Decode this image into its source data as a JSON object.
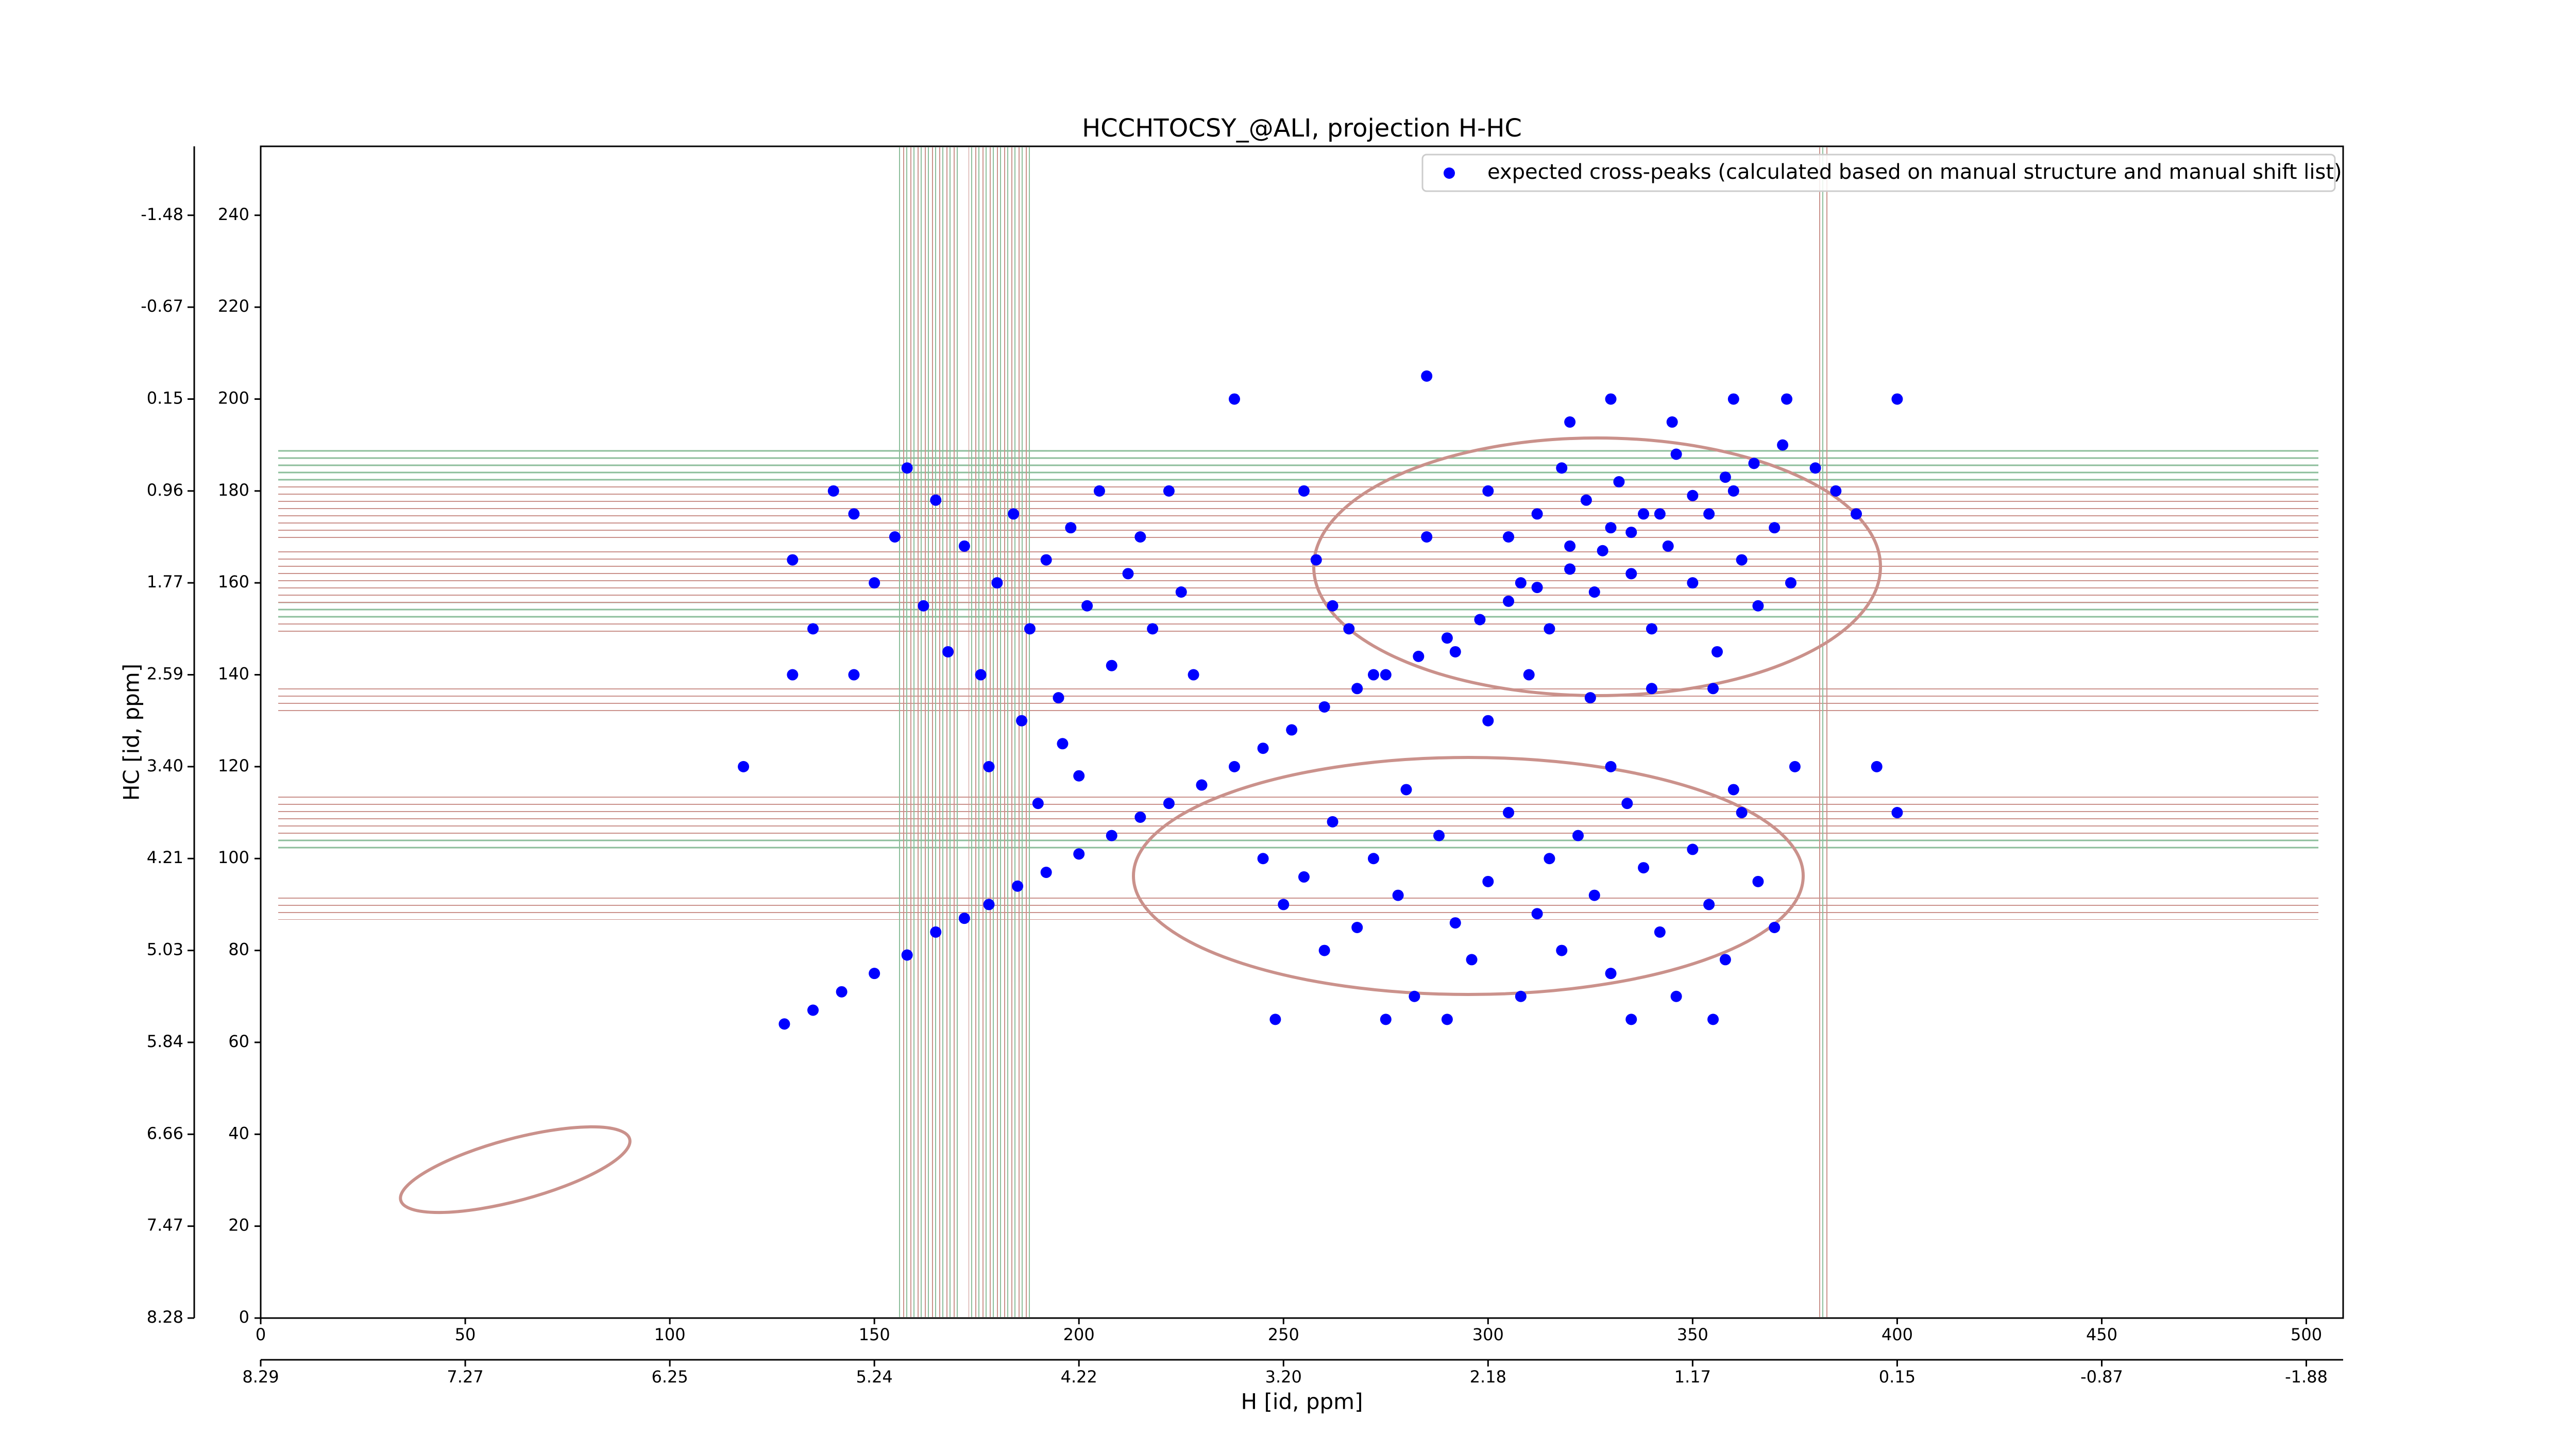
{
  "chart_data": {
    "type": "scatter",
    "title": "HCCHTOCSY_@ALI, projection H-HC",
    "xlabel": "H [id, ppm]",
    "ylabel": "HC [id, ppm]",
    "xlim": [
      0,
      509
    ],
    "ylim": [
      0,
      255
    ],
    "xticks": [
      0,
      50,
      100,
      150,
      200,
      250,
      300,
      350,
      400,
      450,
      500
    ],
    "yticks": [
      0,
      20,
      40,
      60,
      80,
      100,
      120,
      140,
      160,
      180,
      200,
      220,
      240
    ],
    "x2lim": [
      0,
      509
    ],
    "x2ticks": [
      {
        "value": 0,
        "label": "8.29"
      },
      {
        "value": 50,
        "label": "7.27"
      },
      {
        "value": 100,
        "label": "6.25"
      },
      {
        "value": 150,
        "label": "5.24"
      },
      {
        "value": 200,
        "label": "4.22"
      },
      {
        "value": 250,
        "label": "3.20"
      },
      {
        "value": 300,
        "label": "2.18"
      },
      {
        "value": 350,
        "label": "1.17"
      },
      {
        "value": 400,
        "label": "0.15"
      },
      {
        "value": 450,
        "label": "-0.87"
      },
      {
        "value": 500,
        "label": "-1.88"
      }
    ],
    "y2lim": [
      0,
      255
    ],
    "y2ticks": [
      {
        "value": 0,
        "label": "8.28"
      },
      {
        "value": 20,
        "label": "7.47"
      },
      {
        "value": 40,
        "label": "6.66"
      },
      {
        "value": 60,
        "label": "5.84"
      },
      {
        "value": 80,
        "label": "5.03"
      },
      {
        "value": 100,
        "label": "4.21"
      },
      {
        "value": 120,
        "label": "3.40"
      },
      {
        "value": 140,
        "label": "2.59"
      },
      {
        "value": 160,
        "label": "1.77"
      },
      {
        "value": 180,
        "label": "0.96"
      },
      {
        "value": 200,
        "label": "0.15"
      },
      {
        "value": 220,
        "label": "-0.67"
      },
      {
        "value": 240,
        "label": "-1.48"
      }
    ],
    "legend": "upper right",
    "x": [
      128,
      135,
      142,
      150,
      158,
      165,
      172,
      178,
      185,
      192,
      200,
      208,
      215,
      222,
      230,
      238,
      245,
      252,
      260,
      268,
      275,
      283,
      290,
      298,
      305,
      312,
      320,
      328,
      335,
      342,
      350,
      358,
      365,
      372,
      130,
      135,
      140,
      145,
      150,
      155,
      158,
      162,
      165,
      168,
      172,
      176,
      180,
      184,
      188,
      192,
      195,
      198,
      202,
      205,
      208,
      212,
      215,
      218,
      222,
      225,
      228,
      186,
      196,
      178,
      190,
      200,
      255,
      258,
      262,
      266,
      272,
      285,
      292,
      300,
      305,
      308,
      312,
      315,
      318,
      320,
      324,
      326,
      330,
      332,
      335,
      338,
      340,
      344,
      346,
      350,
      354,
      356,
      360,
      362,
      366,
      370,
      374,
      310,
      325,
      340,
      355,
      300,
      320,
      345,
      245,
      250,
      255,
      260,
      262,
      268,
      272,
      278,
      282,
      288,
      292,
      296,
      300,
      305,
      308,
      312,
      315,
      318,
      322,
      326,
      330,
      334,
      338,
      342,
      346,
      350,
      354,
      358,
      362,
      366,
      370,
      375,
      248,
      275,
      290,
      335,
      355,
      280,
      330,
      360,
      238,
      285,
      330,
      360,
      373,
      400,
      380,
      390,
      400,
      395,
      385,
      145,
      118,
      130
    ],
    "series": [
      {
        "name": "expected cross-peaks (calculated based on manual structure and manual shift list)",
        "color": "#0000ff",
        "values": [
          64,
          67,
          71,
          75,
          79,
          84,
          87,
          90,
          94,
          97,
          101,
          105,
          109,
          112,
          116,
          120,
          124,
          128,
          133,
          137,
          140,
          144,
          148,
          152,
          156,
          159,
          163,
          167,
          171,
          175,
          179,
          183,
          186,
          190,
          165,
          150,
          180,
          175,
          160,
          170,
          185,
          155,
          178,
          145,
          168,
          140,
          160,
          175,
          150,
          165,
          135,
          172,
          155,
          180,
          142,
          162,
          170,
          150,
          180,
          158,
          140,
          130,
          125,
          120,
          112,
          118,
          180,
          165,
          155,
          150,
          140,
          170,
          145,
          180,
          170,
          160,
          175,
          150,
          185,
          168,
          178,
          158,
          172,
          182,
          162,
          175,
          150,
          168,
          188,
          160,
          175,
          145,
          180,
          165,
          155,
          172,
          160,
          140,
          135,
          137,
          137,
          130,
          195,
          195,
          100,
          90,
          96,
          80,
          108,
          85,
          100,
          92,
          70,
          105,
          86,
          78,
          95,
          110,
          70,
          88,
          100,
          80,
          105,
          92,
          75,
          112,
          98,
          84,
          70,
          102,
          90,
          78,
          110,
          95,
          85,
          120,
          65,
          65,
          65,
          65,
          65,
          115,
          120,
          115,
          200,
          205,
          200,
          200,
          200,
          200,
          185,
          175,
          110,
          120,
          180,
          140,
          120,
          140
        ]
      }
    ]
  }
}
